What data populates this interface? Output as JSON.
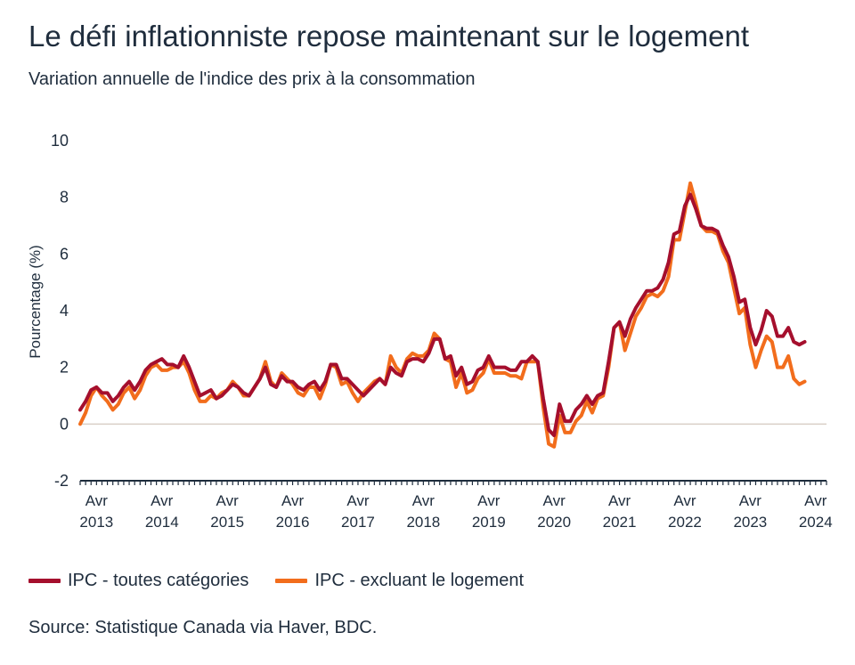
{
  "title": "Le défi inflationniste repose maintenant sur le logement",
  "subtitle": "Variation annuelle de l'indice des prix à la consommation",
  "source": "Source: Statistique Canada via Haver, BDC.",
  "colors": {
    "all_items": "#a50f2d",
    "ex_shelter": "#f26d1c",
    "zero_line": "#d9cfc7",
    "axis": "#1f2d3d"
  },
  "chart_data": {
    "type": "line",
    "ylabel": "Pourcentage (%)",
    "ylim": [
      -2,
      10
    ],
    "yticks": [
      -2,
      0,
      2,
      4,
      6,
      8,
      10
    ],
    "x_start": "2013-01",
    "x_end": "2024-06",
    "xticks": [
      {
        "month": "2013-04",
        "label1": "Avr",
        "label2": "2013"
      },
      {
        "month": "2014-04",
        "label1": "Avr",
        "label2": "2014"
      },
      {
        "month": "2015-04",
        "label1": "Avr",
        "label2": "2015"
      },
      {
        "month": "2016-04",
        "label1": "Avr",
        "label2": "2016"
      },
      {
        "month": "2017-04",
        "label1": "Avr",
        "label2": "2017"
      },
      {
        "month": "2018-04",
        "label1": "Avr",
        "label2": "2018"
      },
      {
        "month": "2019-04",
        "label1": "Avr",
        "label2": "2019"
      },
      {
        "month": "2020-04",
        "label1": "Avr",
        "label2": "2020"
      },
      {
        "month": "2021-04",
        "label1": "Avr",
        "label2": "2021"
      },
      {
        "month": "2022-04",
        "label1": "Avr",
        "label2": "2022"
      },
      {
        "month": "2023-04",
        "label1": "Avr",
        "label2": "2023"
      },
      {
        "month": "2024-04",
        "label1": "Avr",
        "label2": "2024"
      }
    ],
    "grid": false,
    "legend_position": "bottom-left",
    "series": [
      {
        "name": "IPC - toutes catégories",
        "color": "#a50f2d",
        "values": [
          0.5,
          0.8,
          1.2,
          1.3,
          1.1,
          1.1,
          0.8,
          1.0,
          1.3,
          1.5,
          1.2,
          1.5,
          1.9,
          2.1,
          2.2,
          2.3,
          2.1,
          2.1,
          2.0,
          2.4,
          2.0,
          1.5,
          1.0,
          1.1,
          1.2,
          0.9,
          1.0,
          1.2,
          1.4,
          1.3,
          1.1,
          1.0,
          1.3,
          1.6,
          2.0,
          1.4,
          1.3,
          1.7,
          1.5,
          1.5,
          1.3,
          1.2,
          1.4,
          1.5,
          1.2,
          1.5,
          2.1,
          2.1,
          1.6,
          1.6,
          1.4,
          1.2,
          1.0,
          1.2,
          1.4,
          1.6,
          1.4,
          2.0,
          1.8,
          1.7,
          2.2,
          2.3,
          2.3,
          2.2,
          2.5,
          3.0,
          3.0,
          2.3,
          2.4,
          1.7,
          2.0,
          1.4,
          1.5,
          1.9,
          2.0,
          2.4,
          2.0,
          2.0,
          2.0,
          1.9,
          1.9,
          2.2,
          2.2,
          2.4,
          2.2,
          0.9,
          -0.2,
          -0.4,
          0.7,
          0.1,
          0.1,
          0.5,
          0.7,
          1.0,
          0.7,
          1.0,
          1.1,
          2.2,
          3.4,
          3.6,
          3.1,
          3.7,
          4.1,
          4.4,
          4.7,
          4.7,
          4.8,
          5.1,
          5.7,
          6.7,
          6.8,
          7.7,
          8.1,
          7.6,
          7.0,
          6.9,
          6.9,
          6.8,
          6.3,
          5.9,
          5.2,
          4.3,
          4.4,
          3.4,
          2.8,
          3.3,
          4.0,
          3.8,
          3.1,
          3.1,
          3.4,
          2.9,
          2.8,
          2.9
        ]
      },
      {
        "name": "IPC - excluant le logement",
        "color": "#f26d1c",
        "values": [
          0.0,
          0.4,
          1.0,
          1.3,
          1.0,
          0.8,
          0.5,
          0.7,
          1.1,
          1.3,
          0.9,
          1.2,
          1.7,
          2.0,
          2.1,
          1.9,
          1.9,
          2.0,
          2.0,
          2.2,
          1.8,
          1.2,
          0.8,
          0.8,
          1.0,
          0.9,
          1.1,
          1.2,
          1.5,
          1.3,
          1.0,
          1.0,
          1.3,
          1.6,
          2.2,
          1.5,
          1.3,
          1.8,
          1.6,
          1.4,
          1.1,
          1.0,
          1.3,
          1.3,
          0.9,
          1.4,
          2.1,
          2.0,
          1.4,
          1.5,
          1.1,
          0.8,
          1.1,
          1.3,
          1.5,
          1.6,
          1.4,
          2.4,
          2.0,
          1.8,
          2.3,
          2.5,
          2.4,
          2.4,
          2.6,
          3.2,
          3.0,
          2.3,
          2.2,
          1.3,
          1.8,
          1.1,
          1.2,
          1.6,
          1.8,
          2.3,
          1.8,
          1.8,
          1.8,
          1.7,
          1.7,
          1.6,
          2.2,
          2.2,
          2.2,
          0.6,
          -0.7,
          -0.8,
          0.3,
          -0.3,
          -0.3,
          0.1,
          0.3,
          0.8,
          0.4,
          0.9,
          1.0,
          2.0,
          3.4,
          3.6,
          2.6,
          3.2,
          3.8,
          4.1,
          4.5,
          4.6,
          4.5,
          4.7,
          5.2,
          6.5,
          6.5,
          7.5,
          8.5,
          7.8,
          7.0,
          6.8,
          6.8,
          6.7,
          6.1,
          5.7,
          4.8,
          3.9,
          4.1,
          2.8,
          2.0,
          2.6,
          3.1,
          2.9,
          2.0,
          2.0,
          2.4,
          1.6,
          1.4,
          1.5
        ]
      }
    ]
  }
}
